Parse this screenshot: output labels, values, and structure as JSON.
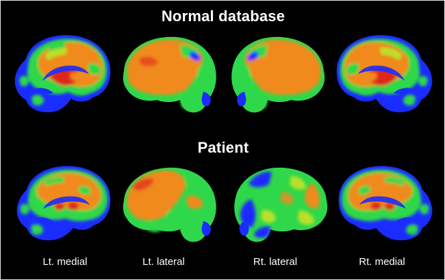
{
  "titles": {
    "normal": "Normal database",
    "patient": "Patient"
  },
  "views": [
    {
      "label": "Lt. medial"
    },
    {
      "label": "Lt. lateral"
    },
    {
      "label": "Rt. lateral"
    },
    {
      "label": "Rt. medial"
    }
  ],
  "perfusion_colors": {
    "background": "#000000",
    "low": "#1a2cff",
    "mid_low": "#2fd84a",
    "mid": "#b8e02c",
    "high": "#f08a1e",
    "peak": "#e0261a"
  }
}
